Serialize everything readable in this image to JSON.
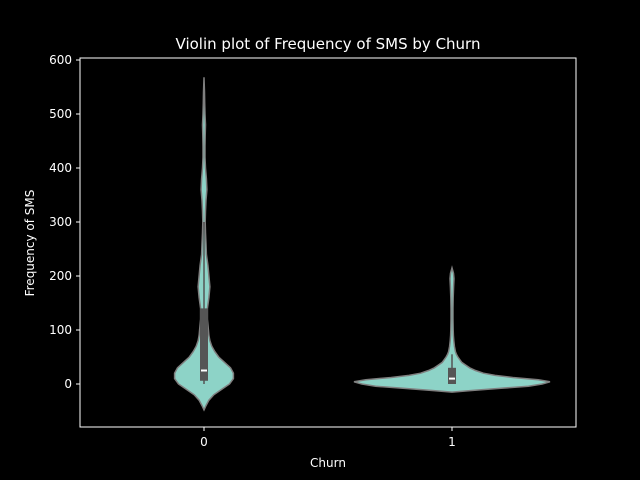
{
  "chart_data": {
    "type": "violin",
    "title": "Violin plot of Frequency of SMS by Churn",
    "xlabel": "Churn",
    "ylabel": "Frequency of SMS",
    "categories": [
      "0",
      "1"
    ],
    "yticks": [
      0,
      100,
      200,
      300,
      400,
      500,
      600
    ],
    "ylim": [
      -80,
      600
    ],
    "grid": false,
    "colors": {
      "background": "#000000",
      "violin_fill": "#8dd3c7",
      "violin_edge": "#7f7f7f",
      "box": "#555555",
      "median": "#ffffff",
      "axes": "#ffffff"
    },
    "violins": [
      {
        "category": "0",
        "min": -48,
        "max": 568,
        "q1": 6,
        "median": 25,
        "q3": 140,
        "whisker_low": 0,
        "whisker_high": 300,
        "density": [
          [
            -48,
            0.0
          ],
          [
            -40,
            0.02
          ],
          [
            -30,
            0.05
          ],
          [
            -20,
            0.1
          ],
          [
            -10,
            0.18
          ],
          [
            0,
            0.26
          ],
          [
            10,
            0.3
          ],
          [
            20,
            0.3
          ],
          [
            30,
            0.27
          ],
          [
            40,
            0.21
          ],
          [
            50,
            0.15
          ],
          [
            60,
            0.11
          ],
          [
            70,
            0.08
          ],
          [
            80,
            0.06
          ],
          [
            90,
            0.05
          ],
          [
            100,
            0.045
          ],
          [
            120,
            0.035
          ],
          [
            140,
            0.035
          ],
          [
            160,
            0.05
          ],
          [
            180,
            0.06
          ],
          [
            200,
            0.05
          ],
          [
            220,
            0.04
          ],
          [
            240,
            0.025
          ],
          [
            260,
            0.02
          ],
          [
            280,
            0.015
          ],
          [
            300,
            0.012
          ],
          [
            320,
            0.015
          ],
          [
            340,
            0.02
          ],
          [
            360,
            0.03
          ],
          [
            380,
            0.025
          ],
          [
            400,
            0.015
          ],
          [
            420,
            0.01
          ],
          [
            440,
            0.01
          ],
          [
            460,
            0.012
          ],
          [
            480,
            0.015
          ],
          [
            500,
            0.01
          ],
          [
            520,
            0.007
          ],
          [
            540,
            0.005
          ],
          [
            568,
            0.0
          ]
        ]
      },
      {
        "category": "1",
        "min": -15,
        "max": 215,
        "q1": 0,
        "median": 10,
        "q3": 30,
        "whisker_low": 0,
        "whisker_high": 55,
        "density": [
          [
            -15,
            0.0
          ],
          [
            -12,
            0.2
          ],
          [
            -8,
            0.5
          ],
          [
            -4,
            0.78
          ],
          [
            0,
            0.92
          ],
          [
            4,
            1.0
          ],
          [
            8,
            0.88
          ],
          [
            12,
            0.62
          ],
          [
            16,
            0.44
          ],
          [
            20,
            0.32
          ],
          [
            25,
            0.24
          ],
          [
            30,
            0.18
          ],
          [
            35,
            0.14
          ],
          [
            40,
            0.1
          ],
          [
            45,
            0.08
          ],
          [
            50,
            0.06
          ],
          [
            55,
            0.045
          ],
          [
            60,
            0.035
          ],
          [
            70,
            0.025
          ],
          [
            80,
            0.018
          ],
          [
            90,
            0.014
          ],
          [
            100,
            0.012
          ],
          [
            120,
            0.01
          ],
          [
            140,
            0.01
          ],
          [
            160,
            0.012
          ],
          [
            180,
            0.016
          ],
          [
            195,
            0.02
          ],
          [
            205,
            0.015
          ],
          [
            215,
            0.0
          ]
        ]
      }
    ]
  }
}
